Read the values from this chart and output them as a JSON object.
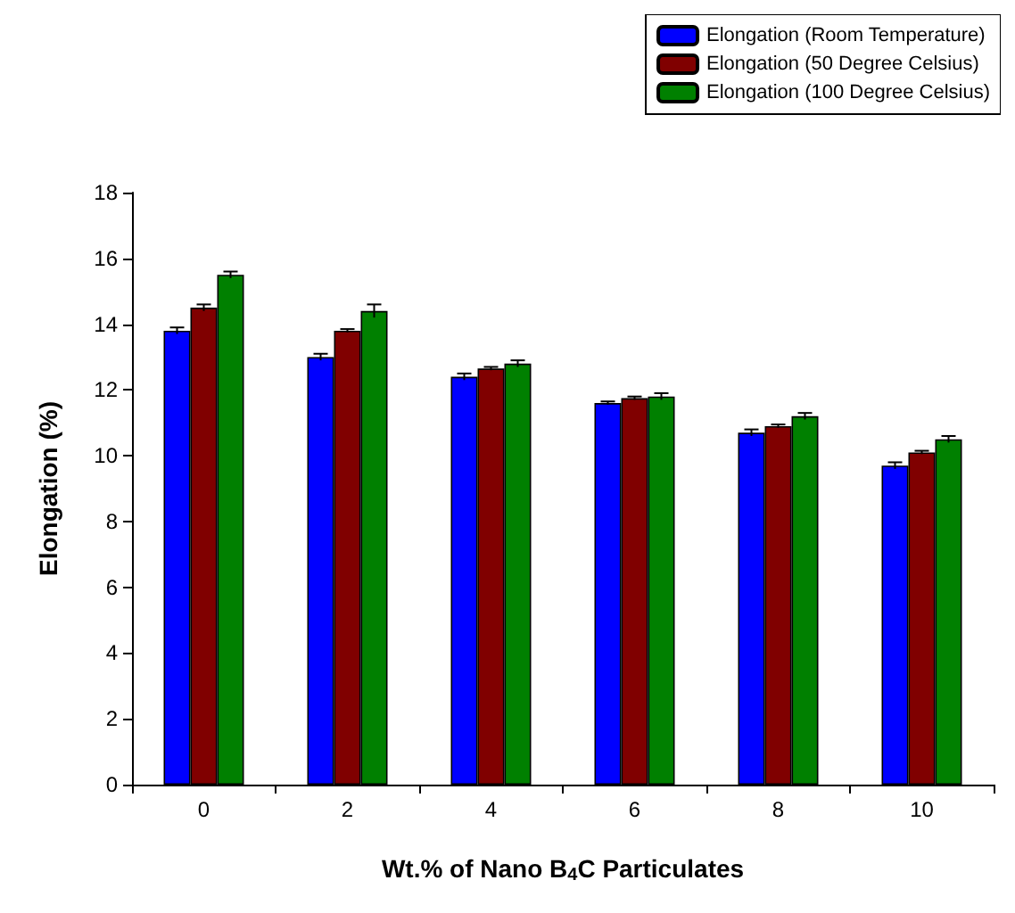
{
  "chart_data": {
    "type": "bar",
    "xlabel": "Wt.% of Nano B$_{4}$C Particulates",
    "ylabel": "Elongation (%)",
    "categories": [
      "0",
      "2",
      "4",
      "6",
      "8",
      "10"
    ],
    "series": [
      {
        "name": "Elongation (Room Temperature)",
        "color": "#0000ff",
        "values": [
          13.8,
          13.0,
          12.4,
          11.6,
          10.7,
          9.7
        ],
        "errors": [
          0.1,
          0.1,
          0.1,
          0.05,
          0.1,
          0.1
        ]
      },
      {
        "name": "Elongation (50 Degree Celsius)",
        "color": "#800000",
        "values": [
          14.5,
          13.8,
          12.65,
          11.75,
          10.9,
          10.1
        ],
        "errors": [
          0.1,
          0.05,
          0.05,
          0.05,
          0.05,
          0.05
        ]
      },
      {
        "name": "Elongation (100 Degree Celsius)",
        "color": "#008000",
        "values": [
          15.5,
          14.4,
          12.8,
          11.8,
          11.2,
          10.5
        ],
        "errors": [
          0.1,
          0.2,
          0.1,
          0.1,
          0.1,
          0.1
        ]
      }
    ],
    "ylim": [
      0,
      18
    ],
    "yticks": [
      0,
      2,
      4,
      6,
      8,
      10,
      12,
      14,
      16,
      18
    ],
    "legend": "top right",
    "grid": false
  }
}
